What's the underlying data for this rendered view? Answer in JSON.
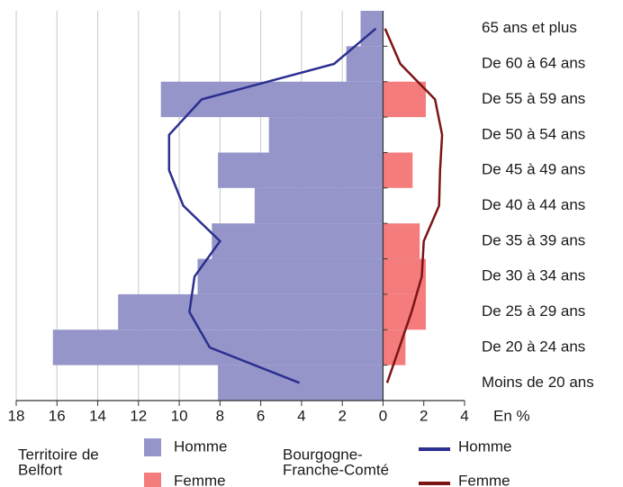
{
  "chart_data": {
    "type": "pyramid",
    "categories": [
      "65 ans et plus",
      "De 60 à 64 ans",
      "De 55 à 59 ans",
      "De 50 à 54 ans",
      "De 45 à 49 ans",
      "De 40 à 44 ans",
      "De 35 à 39 ans",
      "De 30 à 34 ans",
      "De 25 à 29 ans",
      "De 20 à 24 ans",
      "Moins de 20 ans"
    ],
    "xlim": [
      -18,
      4
    ],
    "xticks": [
      {
        "value": -18,
        "label": "18"
      },
      {
        "value": -16,
        "label": "16"
      },
      {
        "value": -14,
        "label": "14"
      },
      {
        "value": -12,
        "label": "12"
      },
      {
        "value": -10,
        "label": "10"
      },
      {
        "value": -8,
        "label": "8"
      },
      {
        "value": -6,
        "label": "6"
      },
      {
        "value": -4,
        "label": "4"
      },
      {
        "value": -2,
        "label": "2"
      },
      0,
      2,
      4
    ],
    "x_unit": "En %",
    "grid": true,
    "groups": [
      {
        "title": [
          "Territoire de",
          "Belfort"
        ],
        "type": "bar",
        "series": [
          {
            "name": "Homme",
            "side": "left",
            "color": "#9595c9",
            "values": [
              1.1,
              1.8,
              10.9,
              5.6,
              8.1,
              6.3,
              8.4,
              9.1,
              13.0,
              16.2,
              8.1
            ]
          },
          {
            "name": "Femme",
            "side": "right",
            "color": "#f47c7c",
            "values": [
              0,
              0,
              2.1,
              0,
              1.45,
              0,
              1.8,
              2.1,
              2.1,
              1.1,
              0
            ]
          }
        ]
      },
      {
        "title": [
          "Bourgogne-",
          "Franche-Comté"
        ],
        "type": "line",
        "series": [
          {
            "name": "Homme",
            "side": "left",
            "color": "#2b2f8f",
            "values": [
              0.35,
              2.4,
              8.9,
              10.5,
              10.5,
              9.8,
              8.0,
              9.25,
              9.5,
              8.5,
              4.1
            ]
          },
          {
            "name": "Femme",
            "side": "right",
            "color": "#7d1416",
            "values": [
              0.1,
              0.85,
              2.55,
              2.9,
              2.8,
              2.75,
              2.0,
              1.9,
              1.4,
              0.8,
              0.2
            ]
          }
        ]
      }
    ]
  }
}
